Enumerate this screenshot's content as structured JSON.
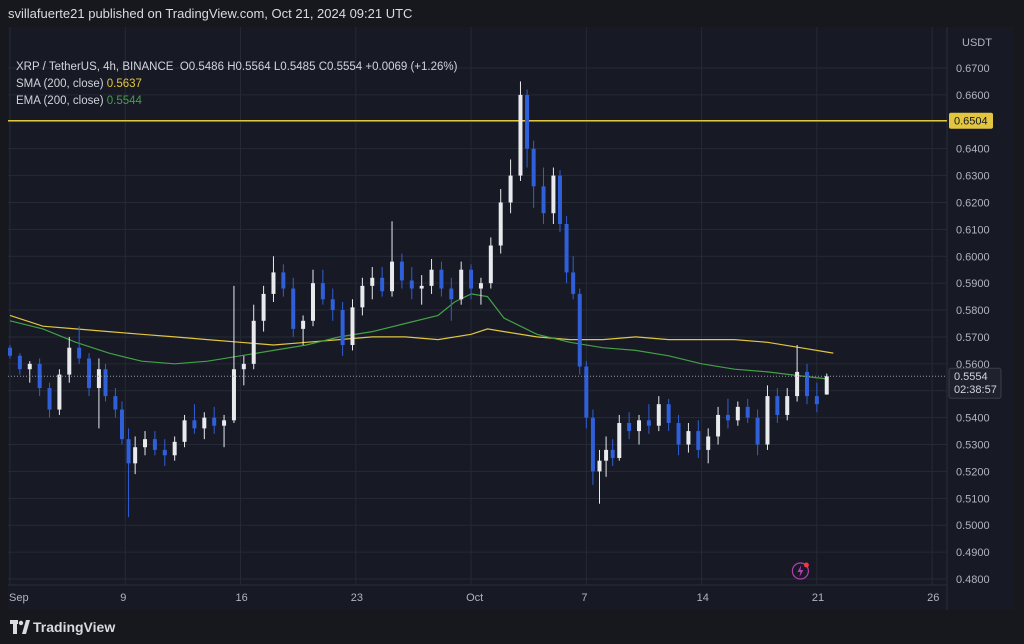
{
  "header": {
    "publisher": "svillafuerte21 published on TradingView.com, Oct 21, 2024 09:21 UTC"
  },
  "legend": {
    "symbol": "XRP / TetherUS, 4h, BINANCE",
    "o_label": "O",
    "o": "0.5486",
    "h_label": "H",
    "h": "0.5564",
    "l_label": "L",
    "l": "0.5485",
    "c_label": "C",
    "c": "0.5554",
    "change": "+0.0069 (+1.26%)",
    "sma_label": "SMA (200, close)",
    "sma_value": "0.5637",
    "ema_label": "EMA (200, close)",
    "ema_value": "0.5544"
  },
  "axis": {
    "currency": "USDT",
    "countdown": "02:38:57"
  },
  "footer": {
    "brand": "TradingView"
  },
  "colors": {
    "up": "#e9eaee",
    "down": "#2f5fd9",
    "sma": "#e2c640",
    "ema": "#43a047",
    "hline": "#e2c640",
    "grid": "#262a36",
    "bg": "#171924"
  },
  "chart_data": {
    "type": "candlestick",
    "symbol": "XRP / TetherUS",
    "interval": "4h",
    "exchange": "BINANCE",
    "ylim": [
      0.48,
      0.67
    ],
    "y_ticks": [
      "0.4800",
      "0.4900",
      "0.5000",
      "0.5100",
      "0.5200",
      "0.5300",
      "0.5400",
      "0.5500",
      "0.5600",
      "0.5700",
      "0.5800",
      "0.5900",
      "0.6000",
      "0.6100",
      "0.6200",
      "0.6300",
      "0.6400",
      "0.6500",
      "0.6600",
      "0.6700"
    ],
    "x_ticks": [
      {
        "day": 2,
        "label": "Sep"
      },
      {
        "day": 9,
        "label": "9"
      },
      {
        "day": 16,
        "label": "16"
      },
      {
        "day": 23,
        "label": "23"
      },
      {
        "day": 30,
        "label": "Oct"
      },
      {
        "day": 37,
        "label": "7"
      },
      {
        "day": 44,
        "label": "14"
      },
      {
        "day": 51,
        "label": "21"
      },
      {
        "day": 58,
        "label": "26"
      }
    ],
    "x_day_range": [
      2,
      62
    ],
    "last_candle_day": 51.6,
    "horizontal_line": {
      "value": 0.6504,
      "label": "0.6504"
    },
    "current_price": {
      "value": 0.5554,
      "label": "0.5554"
    },
    "sma_200": [
      [
        2,
        0.578
      ],
      [
        4,
        0.574
      ],
      [
        6,
        0.573
      ],
      [
        8,
        0.572
      ],
      [
        10,
        0.571
      ],
      [
        12,
        0.57
      ],
      [
        14,
        0.569
      ],
      [
        16,
        0.568
      ],
      [
        18,
        0.567
      ],
      [
        20,
        0.568
      ],
      [
        22,
        0.569
      ],
      [
        24,
        0.57
      ],
      [
        26,
        0.57
      ],
      [
        28,
        0.569
      ],
      [
        30,
        0.571
      ],
      [
        31,
        0.573
      ],
      [
        32,
        0.572
      ],
      [
        34,
        0.57
      ],
      [
        36,
        0.569
      ],
      [
        38,
        0.569
      ],
      [
        40,
        0.57
      ],
      [
        42,
        0.569
      ],
      [
        44,
        0.569
      ],
      [
        46,
        0.569
      ],
      [
        48,
        0.568
      ],
      [
        50,
        0.566
      ],
      [
        52,
        0.564
      ]
    ],
    "ema_200": [
      [
        2,
        0.576
      ],
      [
        4,
        0.573
      ],
      [
        6,
        0.568
      ],
      [
        8,
        0.564
      ],
      [
        10,
        0.561
      ],
      [
        12,
        0.56
      ],
      [
        14,
        0.561
      ],
      [
        16,
        0.563
      ],
      [
        18,
        0.565
      ],
      [
        20,
        0.567
      ],
      [
        22,
        0.57
      ],
      [
        24,
        0.572
      ],
      [
        26,
        0.575
      ],
      [
        28,
        0.578
      ],
      [
        29,
        0.583
      ],
      [
        30,
        0.586
      ],
      [
        31,
        0.585
      ],
      [
        32,
        0.577
      ],
      [
        34,
        0.571
      ],
      [
        36,
        0.568
      ],
      [
        38,
        0.566
      ],
      [
        40,
        0.565
      ],
      [
        42,
        0.563
      ],
      [
        44,
        0.56
      ],
      [
        46,
        0.558
      ],
      [
        48,
        0.557
      ],
      [
        50,
        0.5555
      ],
      [
        51.6,
        0.5544
      ]
    ],
    "candles": [
      [
        2.0,
        0.566,
        0.567,
        0.562,
        0.563
      ],
      [
        2.6,
        0.563,
        0.564,
        0.556,
        0.558
      ],
      [
        3.2,
        0.558,
        0.561,
        0.553,
        0.56
      ],
      [
        3.8,
        0.56,
        0.562,
        0.548,
        0.551
      ],
      [
        4.4,
        0.551,
        0.553,
        0.54,
        0.543
      ],
      [
        5.0,
        0.543,
        0.558,
        0.541,
        0.556
      ],
      [
        5.6,
        0.556,
        0.57,
        0.553,
        0.566
      ],
      [
        6.2,
        0.566,
        0.574,
        0.56,
        0.562
      ],
      [
        6.8,
        0.562,
        0.564,
        0.548,
        0.551
      ],
      [
        7.4,
        0.551,
        0.562,
        0.536,
        0.558
      ],
      [
        7.8,
        0.558,
        0.56,
        0.546,
        0.548
      ],
      [
        8.4,
        0.548,
        0.551,
        0.54,
        0.543
      ],
      [
        8.8,
        0.543,
        0.546,
        0.53,
        0.532
      ],
      [
        9.2,
        0.532,
        0.536,
        0.503,
        0.523
      ],
      [
        9.6,
        0.523,
        0.533,
        0.519,
        0.529
      ],
      [
        10.2,
        0.529,
        0.535,
        0.526,
        0.532
      ],
      [
        10.8,
        0.532,
        0.535,
        0.526,
        0.528
      ],
      [
        11.4,
        0.528,
        0.532,
        0.522,
        0.526
      ],
      [
        12.0,
        0.526,
        0.533,
        0.524,
        0.531
      ],
      [
        12.6,
        0.531,
        0.541,
        0.529,
        0.539
      ],
      [
        13.2,
        0.539,
        0.545,
        0.534,
        0.536
      ],
      [
        13.8,
        0.536,
        0.542,
        0.532,
        0.54
      ],
      [
        14.4,
        0.54,
        0.544,
        0.534,
        0.537
      ],
      [
        15.0,
        0.537,
        0.541,
        0.529,
        0.539
      ],
      [
        15.6,
        0.539,
        0.589,
        0.538,
        0.558
      ],
      [
        16.2,
        0.558,
        0.563,
        0.552,
        0.56
      ],
      [
        16.8,
        0.56,
        0.582,
        0.558,
        0.576
      ],
      [
        17.4,
        0.576,
        0.589,
        0.572,
        0.586
      ],
      [
        18.0,
        0.586,
        0.6,
        0.583,
        0.594
      ],
      [
        18.6,
        0.594,
        0.597,
        0.585,
        0.588
      ],
      [
        19.2,
        0.588,
        0.592,
        0.57,
        0.573
      ],
      [
        19.8,
        0.573,
        0.578,
        0.567,
        0.576
      ],
      [
        20.4,
        0.576,
        0.595,
        0.574,
        0.59
      ],
      [
        21.0,
        0.59,
        0.595,
        0.582,
        0.584
      ],
      [
        21.6,
        0.584,
        0.588,
        0.576,
        0.58
      ],
      [
        22.2,
        0.58,
        0.583,
        0.563,
        0.567
      ],
      [
        22.8,
        0.567,
        0.584,
        0.565,
        0.581
      ],
      [
        23.4,
        0.581,
        0.592,
        0.578,
        0.589
      ],
      [
        24.0,
        0.589,
        0.596,
        0.584,
        0.592
      ],
      [
        24.6,
        0.592,
        0.596,
        0.585,
        0.587
      ],
      [
        25.2,
        0.587,
        0.613,
        0.585,
        0.598
      ],
      [
        25.8,
        0.598,
        0.601,
        0.588,
        0.591
      ],
      [
        26.4,
        0.591,
        0.596,
        0.584,
        0.588
      ],
      [
        27.0,
        0.588,
        0.593,
        0.582,
        0.589
      ],
      [
        27.6,
        0.589,
        0.599,
        0.586,
        0.595
      ],
      [
        28.2,
        0.595,
        0.598,
        0.585,
        0.588
      ],
      [
        28.8,
        0.588,
        0.592,
        0.576,
        0.584
      ],
      [
        29.4,
        0.584,
        0.598,
        0.582,
        0.595
      ],
      [
        30.0,
        0.595,
        0.597,
        0.584,
        0.588
      ],
      [
        30.6,
        0.588,
        0.592,
        0.582,
        0.59
      ],
      [
        31.2,
        0.59,
        0.607,
        0.588,
        0.604
      ],
      [
        31.8,
        0.604,
        0.625,
        0.601,
        0.62
      ],
      [
        32.4,
        0.62,
        0.636,
        0.616,
        0.63
      ],
      [
        33.0,
        0.63,
        0.665,
        0.628,
        0.66
      ],
      [
        33.4,
        0.66,
        0.662,
        0.633,
        0.64
      ],
      [
        33.8,
        0.64,
        0.643,
        0.618,
        0.626
      ],
      [
        34.4,
        0.626,
        0.633,
        0.612,
        0.616
      ],
      [
        35.0,
        0.616,
        0.633,
        0.612,
        0.63
      ],
      [
        35.4,
        0.63,
        0.632,
        0.609,
        0.612
      ],
      [
        35.8,
        0.612,
        0.615,
        0.59,
        0.594
      ],
      [
        36.2,
        0.594,
        0.6,
        0.584,
        0.586
      ],
      [
        36.6,
        0.586,
        0.588,
        0.556,
        0.559
      ],
      [
        37.0,
        0.559,
        0.561,
        0.536,
        0.54
      ],
      [
        37.4,
        0.54,
        0.543,
        0.515,
        0.52
      ],
      [
        37.8,
        0.52,
        0.528,
        0.508,
        0.524
      ],
      [
        38.2,
        0.524,
        0.533,
        0.518,
        0.528
      ],
      [
        38.6,
        0.528,
        0.532,
        0.522,
        0.525
      ],
      [
        39.0,
        0.525,
        0.541,
        0.524,
        0.538
      ],
      [
        39.6,
        0.538,
        0.542,
        0.532,
        0.535
      ],
      [
        40.2,
        0.535,
        0.541,
        0.53,
        0.539
      ],
      [
        40.8,
        0.539,
        0.545,
        0.534,
        0.537
      ],
      [
        41.4,
        0.537,
        0.548,
        0.535,
        0.545
      ],
      [
        42.0,
        0.545,
        0.547,
        0.535,
        0.538
      ],
      [
        42.6,
        0.538,
        0.541,
        0.526,
        0.53
      ],
      [
        43.2,
        0.53,
        0.538,
        0.527,
        0.535
      ],
      [
        43.8,
        0.535,
        0.539,
        0.525,
        0.528
      ],
      [
        44.4,
        0.528,
        0.536,
        0.523,
        0.533
      ],
      [
        45.0,
        0.533,
        0.544,
        0.53,
        0.541
      ],
      [
        45.6,
        0.541,
        0.547,
        0.536,
        0.539
      ],
      [
        46.2,
        0.539,
        0.546,
        0.537,
        0.544
      ],
      [
        46.8,
        0.544,
        0.547,
        0.538,
        0.54
      ],
      [
        47.4,
        0.54,
        0.543,
        0.526,
        0.53
      ],
      [
        48.0,
        0.53,
        0.552,
        0.528,
        0.548
      ],
      [
        48.6,
        0.548,
        0.551,
        0.538,
        0.541
      ],
      [
        49.2,
        0.541,
        0.551,
        0.539,
        0.548
      ],
      [
        49.8,
        0.548,
        0.567,
        0.546,
        0.557
      ],
      [
        50.4,
        0.557,
        0.56,
        0.545,
        0.548
      ],
      [
        51.0,
        0.548,
        0.553,
        0.542,
        0.545
      ],
      [
        51.6,
        0.5486,
        0.5564,
        0.5485,
        0.5554
      ]
    ]
  }
}
